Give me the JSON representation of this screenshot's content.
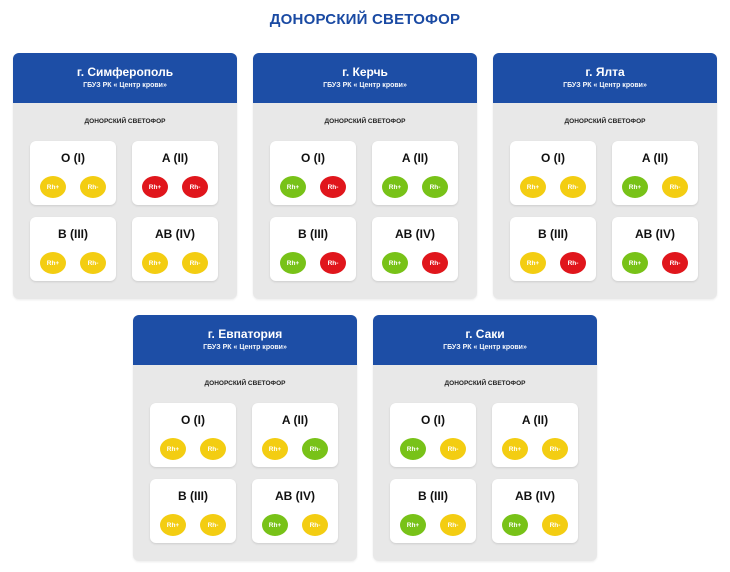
{
  "title": "ДОНОРСКИЙ СВЕТОФОР",
  "colors": {
    "yellow": "#f3cd12",
    "red": "#e0161c",
    "green": "#78c218",
    "header": "#1d4ea6"
  },
  "cards": [
    {
      "city": "г. Симферополь",
      "org": "ГБУЗ РК « Центр крови»",
      "subtitle": "ДОНОРСКИЙ СВЕТОФОР",
      "groups": [
        {
          "name": "O (I)",
          "rh": [
            {
              "label": "Rh+",
              "status": "yellow"
            },
            {
              "label": "Rh-",
              "status": "yellow"
            }
          ]
        },
        {
          "name": "A (II)",
          "rh": [
            {
              "label": "Rh+",
              "status": "red"
            },
            {
              "label": "Rh-",
              "status": "red"
            }
          ]
        },
        {
          "name": "B (III)",
          "rh": [
            {
              "label": "Rh+",
              "status": "yellow"
            },
            {
              "label": "Rh-",
              "status": "yellow"
            }
          ]
        },
        {
          "name": "AB (IV)",
          "rh": [
            {
              "label": "Rh+",
              "status": "yellow"
            },
            {
              "label": "Rh-",
              "status": "yellow"
            }
          ]
        }
      ]
    },
    {
      "city": "г. Керчь",
      "org": "ГБУЗ РК « Центр крови»",
      "subtitle": "ДОНОРСКИЙ СВЕТОФОР",
      "groups": [
        {
          "name": "O (I)",
          "rh": [
            {
              "label": "Rh+",
              "status": "green"
            },
            {
              "label": "Rh-",
              "status": "red"
            }
          ]
        },
        {
          "name": "A (II)",
          "rh": [
            {
              "label": "Rh+",
              "status": "green"
            },
            {
              "label": "Rh-",
              "status": "green"
            }
          ]
        },
        {
          "name": "B (III)",
          "rh": [
            {
              "label": "Rh+",
              "status": "green"
            },
            {
              "label": "Rh-",
              "status": "red"
            }
          ]
        },
        {
          "name": "AB (IV)",
          "rh": [
            {
              "label": "Rh+",
              "status": "green"
            },
            {
              "label": "Rh-",
              "status": "red"
            }
          ]
        }
      ]
    },
    {
      "city": "г. Ялта",
      "org": "ГБУЗ РК « Центр крови»",
      "subtitle": "ДОНОРСКИЙ СВЕТОФОР",
      "groups": [
        {
          "name": "O (I)",
          "rh": [
            {
              "label": "Rh+",
              "status": "yellow"
            },
            {
              "label": "Rh-",
              "status": "yellow"
            }
          ]
        },
        {
          "name": "A (II)",
          "rh": [
            {
              "label": "Rh+",
              "status": "green"
            },
            {
              "label": "Rh-",
              "status": "yellow"
            }
          ]
        },
        {
          "name": "B (III)",
          "rh": [
            {
              "label": "Rh+",
              "status": "yellow"
            },
            {
              "label": "Rh-",
              "status": "red"
            }
          ]
        },
        {
          "name": "AB (IV)",
          "rh": [
            {
              "label": "Rh+",
              "status": "green"
            },
            {
              "label": "Rh-",
              "status": "red"
            }
          ]
        }
      ]
    },
    {
      "city": "г. Евпатория",
      "org": "ГБУЗ РК « Центр крови»",
      "subtitle": "ДОНОРСКИЙ СВЕТОФОР",
      "groups": [
        {
          "name": "O (I)",
          "rh": [
            {
              "label": "Rh+",
              "status": "yellow"
            },
            {
              "label": "Rh-",
              "status": "yellow"
            }
          ]
        },
        {
          "name": "A (II)",
          "rh": [
            {
              "label": "Rh+",
              "status": "yellow"
            },
            {
              "label": "Rh-",
              "status": "green"
            }
          ]
        },
        {
          "name": "B (III)",
          "rh": [
            {
              "label": "Rh+",
              "status": "yellow"
            },
            {
              "label": "Rh-",
              "status": "yellow"
            }
          ]
        },
        {
          "name": "AB (IV)",
          "rh": [
            {
              "label": "Rh+",
              "status": "green"
            },
            {
              "label": "Rh-",
              "status": "yellow"
            }
          ]
        }
      ]
    },
    {
      "city": "г. Саки",
      "org": "ГБУЗ РК « Центр крови»",
      "subtitle": "ДОНОРСКИЙ СВЕТОФОР",
      "groups": [
        {
          "name": "O (I)",
          "rh": [
            {
              "label": "Rh+",
              "status": "green"
            },
            {
              "label": "Rh-",
              "status": "yellow"
            }
          ]
        },
        {
          "name": "A (II)",
          "rh": [
            {
              "label": "Rh+",
              "status": "yellow"
            },
            {
              "label": "Rh-",
              "status": "yellow"
            }
          ]
        },
        {
          "name": "B (III)",
          "rh": [
            {
              "label": "Rh+",
              "status": "green"
            },
            {
              "label": "Rh-",
              "status": "yellow"
            }
          ]
        },
        {
          "name": "AB (IV)",
          "rh": [
            {
              "label": "Rh+",
              "status": "green"
            },
            {
              "label": "Rh-",
              "status": "yellow"
            }
          ]
        }
      ]
    }
  ]
}
